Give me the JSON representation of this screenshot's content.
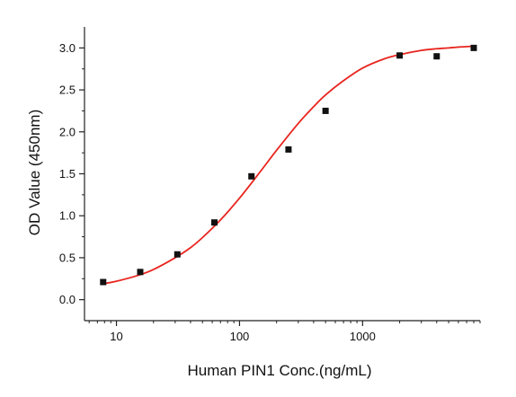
{
  "colors": {
    "curve": "#e8251f",
    "points": "#111111",
    "axis": "#222222",
    "text": "#111111"
  },
  "chart_data": {
    "type": "scatter",
    "xlabel": "Human PIN1 Conc.(ng/mL)",
    "ylabel": "OD Value (450nm)",
    "x_scale": "log",
    "xlim": [
      5.5,
      9000
    ],
    "ylim": [
      -0.25,
      3.25
    ],
    "x_ticks": [
      10,
      100,
      1000
    ],
    "x_tick_labels": [
      "10",
      "100",
      "1000"
    ],
    "y_ticks": [
      0,
      0.5,
      1,
      1.5,
      2,
      2.5,
      3
    ],
    "y_tick_labels": [
      "0.0",
      "0.5",
      "1.0",
      "1.5",
      "2.0",
      "2.5",
      "3.0"
    ],
    "grid": false,
    "series": [
      {
        "type": "scatter",
        "marker": "square",
        "x": [
          7.8,
          15.6,
          31.25,
          62.5,
          125,
          250,
          500,
          2000,
          4000,
          8000
        ],
        "y": [
          0.21,
          0.33,
          0.54,
          0.92,
          1.47,
          1.79,
          2.25,
          2.91,
          2.9,
          3.0
        ]
      },
      {
        "type": "line",
        "x": [
          7.8,
          10,
          15,
          20,
          30,
          40,
          50,
          70,
          100,
          150,
          200,
          300,
          400,
          500,
          700,
          1000,
          1500,
          2000,
          3000,
          4000,
          5000,
          6000,
          8000
        ],
        "y": [
          0.19,
          0.22,
          0.29,
          0.36,
          0.5,
          0.62,
          0.74,
          0.95,
          1.21,
          1.54,
          1.78,
          2.1,
          2.3,
          2.44,
          2.61,
          2.76,
          2.87,
          2.92,
          2.97,
          2.99,
          3.0,
          3.01,
          3.02
        ]
      }
    ]
  }
}
